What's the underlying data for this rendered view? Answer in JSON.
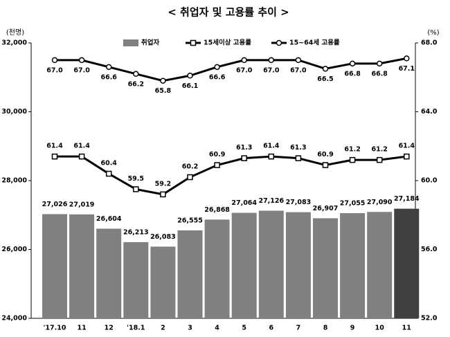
{
  "chart_data": {
    "type": "combo",
    "title": "< 취업자 및 고용률 추이 >",
    "y_label": "(천명)",
    "y2_label": "(%)",
    "categories": [
      "'17.10",
      "11",
      "12",
      "'18.1",
      "2",
      "3",
      "4",
      "5",
      "6",
      "7",
      "8",
      "9",
      "10",
      "11"
    ],
    "ylim": [
      24000,
      32000
    ],
    "yticks": [
      {
        "value": 24000,
        "label": "24,000"
      },
      {
        "value": 26000,
        "label": "26,000"
      },
      {
        "value": 28000,
        "label": "28,000"
      },
      {
        "value": 30000,
        "label": "30,000"
      },
      {
        "value": 32000,
        "label": "32,000"
      }
    ],
    "y2lim": [
      52,
      68
    ],
    "y2ticks": [
      {
        "value": 52,
        "label": "52.0"
      },
      {
        "value": 56,
        "label": "56.0"
      },
      {
        "value": 60,
        "label": "60.0"
      },
      {
        "value": 64,
        "label": "64.0"
      },
      {
        "value": 68,
        "label": "68.0"
      }
    ],
    "series": [
      {
        "name": "취업자",
        "type": "bar",
        "color": "#808080",
        "colors": [
          "#808080",
          "#808080",
          "#808080",
          "#808080",
          "#808080",
          "#808080",
          "#808080",
          "#808080",
          "#808080",
          "#808080",
          "#808080",
          "#808080",
          "#808080",
          "#404040"
        ],
        "values": [
          27026,
          27019,
          26604,
          26213,
          26083,
          26555,
          26868,
          27064,
          27126,
          27083,
          26907,
          27055,
          27090,
          27184
        ],
        "value_labels": [
          "27,026",
          "27,019",
          "26,604",
          "26,213",
          "26,083",
          "26,555",
          "26,868",
          "27,064",
          "27,126",
          "27,083",
          "26,907",
          "27,055",
          "27,090",
          "27,184"
        ]
      },
      {
        "name": "15세이상 고용률",
        "type": "line",
        "axis": "y2",
        "marker": "square",
        "color": "#000000",
        "values": [
          61.4,
          61.4,
          60.4,
          59.5,
          59.2,
          60.2,
          60.9,
          61.3,
          61.4,
          61.3,
          60.9,
          61.2,
          61.2,
          61.4
        ]
      },
      {
        "name": "15~64세 고용률",
        "type": "line",
        "axis": "y2",
        "marker": "circle",
        "color": "#000000",
        "values": [
          67.0,
          67.0,
          66.6,
          66.2,
          65.8,
          66.1,
          66.6,
          67.0,
          67.0,
          67.0,
          66.5,
          66.8,
          66.8,
          67.1
        ],
        "value_labels": [
          "67.0",
          "67.0",
          "66.6",
          "66.2",
          "65.8",
          "66.1",
          "66.6",
          "67.0",
          "67.0",
          "67.0",
          "66.5",
          "66.8",
          "66.8",
          "67.1"
        ]
      }
    ]
  }
}
